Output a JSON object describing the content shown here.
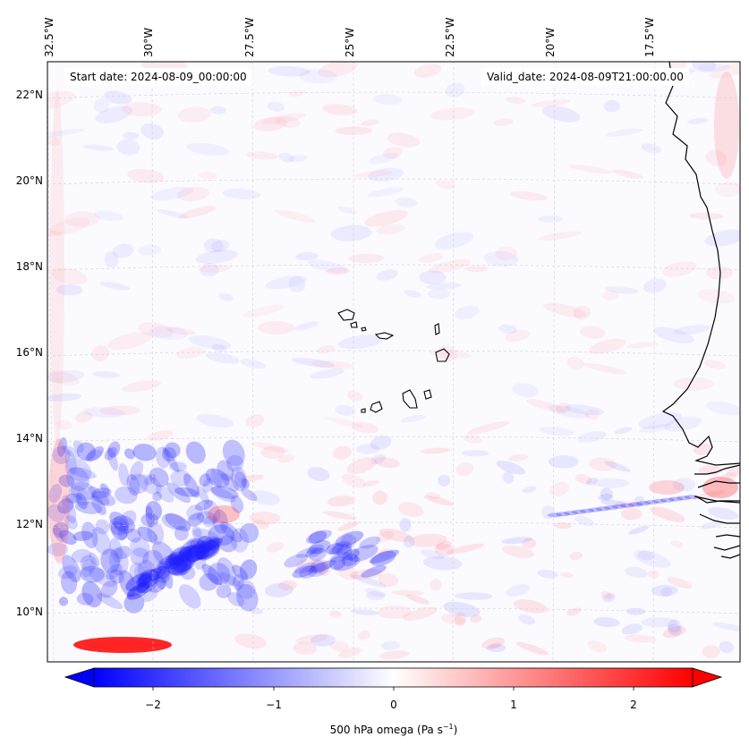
{
  "map": {
    "start_date": "Start date: 2024-08-09_00:00:00",
    "valid_date": "Valid_date: 2024-08-09T21:00:00.00",
    "lon_labels": [
      "32.5°W",
      "30°W",
      "27.5°W",
      "25°W",
      "22.5°W",
      "20°W",
      "17.5°W"
    ],
    "lat_labels": [
      "22°N",
      "20°N",
      "18°N",
      "16°N",
      "14°N",
      "12°N",
      "10°N"
    ],
    "colorbar": {
      "ticks": [
        "−2",
        "−1",
        "0",
        "1",
        "2"
      ],
      "label": "500 hPa omega (Pa s",
      "label_exp": "−1",
      "label_end": ")",
      "colormap": "bwr",
      "range": [
        -2.7,
        2.7
      ]
    },
    "colors": {
      "negative": "#0000ff",
      "neutral": "#ffffff",
      "positive": "#ff0000",
      "coastline": "#000000",
      "grid": "#c8c8c8"
    }
  }
}
